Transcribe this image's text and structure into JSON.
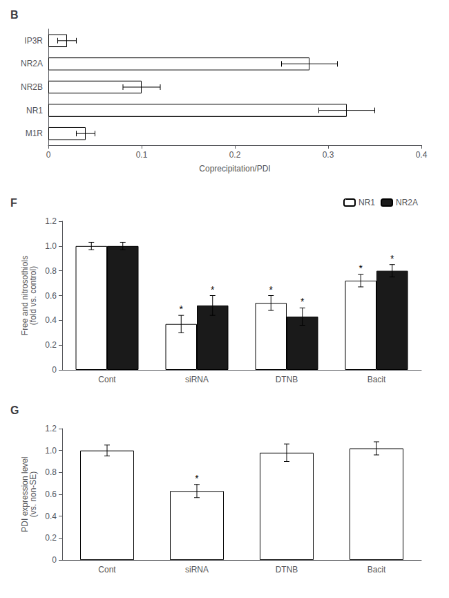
{
  "chart_data": [
    {
      "type": "bar",
      "title": "B",
      "orientation": "horizontal",
      "categories": [
        "IP3R",
        "NR2A",
        "NR2B",
        "NR1",
        "M1R"
      ],
      "values": [
        0.02,
        0.28,
        0.1,
        0.32,
        0.04
      ],
      "errors": [
        0.01,
        0.03,
        0.02,
        0.03,
        0.01
      ],
      "color": "#ffffff",
      "xlabel": "Coprecipitation/PDI",
      "xlim": [
        0,
        0.4
      ],
      "xticks": [
        0,
        0.1,
        0.2,
        0.3,
        0.4
      ],
      "grid": false
    },
    {
      "type": "bar",
      "title": "F",
      "categories": [
        "Cont",
        "siRNA",
        "DTNB",
        "Bacit"
      ],
      "series": [
        {
          "name": "NR1",
          "color": "#ffffff",
          "values": [
            1.0,
            0.37,
            0.54,
            0.72
          ],
          "errors": [
            0.03,
            0.07,
            0.06,
            0.05
          ]
        },
        {
          "name": "NR2A",
          "color": "#1a1a1a",
          "values": [
            1.0,
            0.52,
            0.43,
            0.8
          ],
          "errors": [
            0.03,
            0.08,
            0.07,
            0.05
          ]
        }
      ],
      "ylabel": "Free and nitrosothiols\n(fold vs. control)",
      "ylim": [
        0,
        1.2
      ],
      "yticks": [
        0,
        0.2,
        0.4,
        0.6,
        0.8,
        {
          "value": 1.0,
          "label": "1.0"
        },
        1.2
      ],
      "legend": "upper right",
      "annotations": [
        {
          "text": "*",
          "category": "siRNA",
          "series": "NR1"
        },
        {
          "text": "*",
          "category": "siRNA",
          "series": "NR2A"
        },
        {
          "text": "*",
          "category": "DTNB",
          "series": "NR1"
        },
        {
          "text": "*",
          "category": "DTNB",
          "series": "NR2A"
        },
        {
          "text": "*",
          "category": "Bacit",
          "series": "NR1"
        },
        {
          "text": "*",
          "category": "Bacit",
          "series": "NR2A"
        }
      ],
      "grid": false
    },
    {
      "type": "bar",
      "title": "G",
      "categories": [
        "Cont",
        "siRNA",
        "DTNB",
        "Bacit"
      ],
      "values": [
        1.0,
        0.63,
        0.98,
        1.02
      ],
      "errors": [
        0.05,
        0.06,
        0.08,
        0.06
      ],
      "color": "#ffffff",
      "ylabel": "PDI expression level\n(vs. non-SE)",
      "ylim": [
        0,
        1.2
      ],
      "yticks": [
        0,
        0.2,
        0.4,
        0.6,
        0.8,
        {
          "value": 1.0,
          "label": "1.0"
        },
        1.2
      ],
      "annotations": [
        {
          "text": "*",
          "category": "siRNA"
        }
      ],
      "grid": false
    }
  ]
}
